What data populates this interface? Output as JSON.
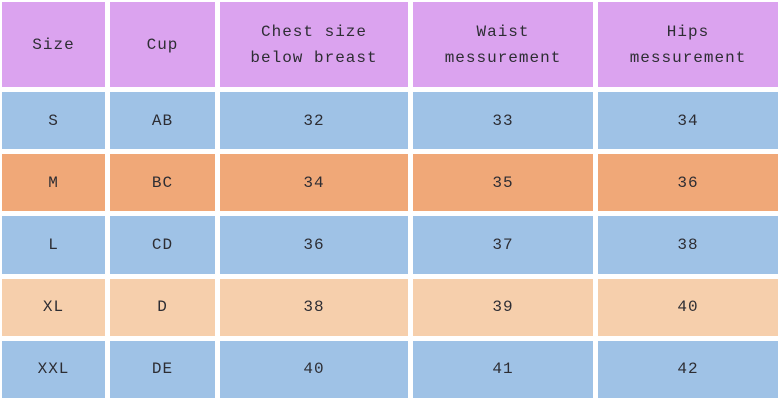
{
  "colors": {
    "background": "#ffffff",
    "header_bg": "#dba3ef",
    "row_blue": "#9fc2e6",
    "row_orange": "#f0a878",
    "row_peach": "#f6cfac",
    "text": "#2d2d33"
  },
  "table": {
    "headers": [
      "Size",
      "Cup",
      "Chest size below breast",
      "Waist messurement",
      "Hips messurement"
    ],
    "rows": [
      {
        "color": "blue",
        "cells": [
          "S",
          "AB",
          "32",
          "33",
          "34"
        ]
      },
      {
        "color": "orange",
        "cells": [
          "M",
          "BC",
          "34",
          "35",
          "36"
        ]
      },
      {
        "color": "blue",
        "cells": [
          "L",
          "CD",
          "36",
          "37",
          "38"
        ]
      },
      {
        "color": "peach",
        "cells": [
          "XL",
          "D",
          "38",
          "39",
          "40"
        ]
      },
      {
        "color": "blue",
        "cells": [
          "XXL",
          "DE",
          "40",
          "41",
          "42"
        ]
      }
    ]
  },
  "chart_data": {
    "type": "table",
    "columns": [
      "Size",
      "Cup",
      "Chest size below breast",
      "Waist messurement",
      "Hips messurement"
    ],
    "rows": [
      [
        "S",
        "AB",
        32,
        33,
        34
      ],
      [
        "M",
        "BC",
        34,
        35,
        36
      ],
      [
        "L",
        "CD",
        36,
        37,
        38
      ],
      [
        "XL",
        "D",
        38,
        39,
        40
      ],
      [
        "XXL",
        "DE",
        40,
        41,
        42
      ]
    ]
  }
}
